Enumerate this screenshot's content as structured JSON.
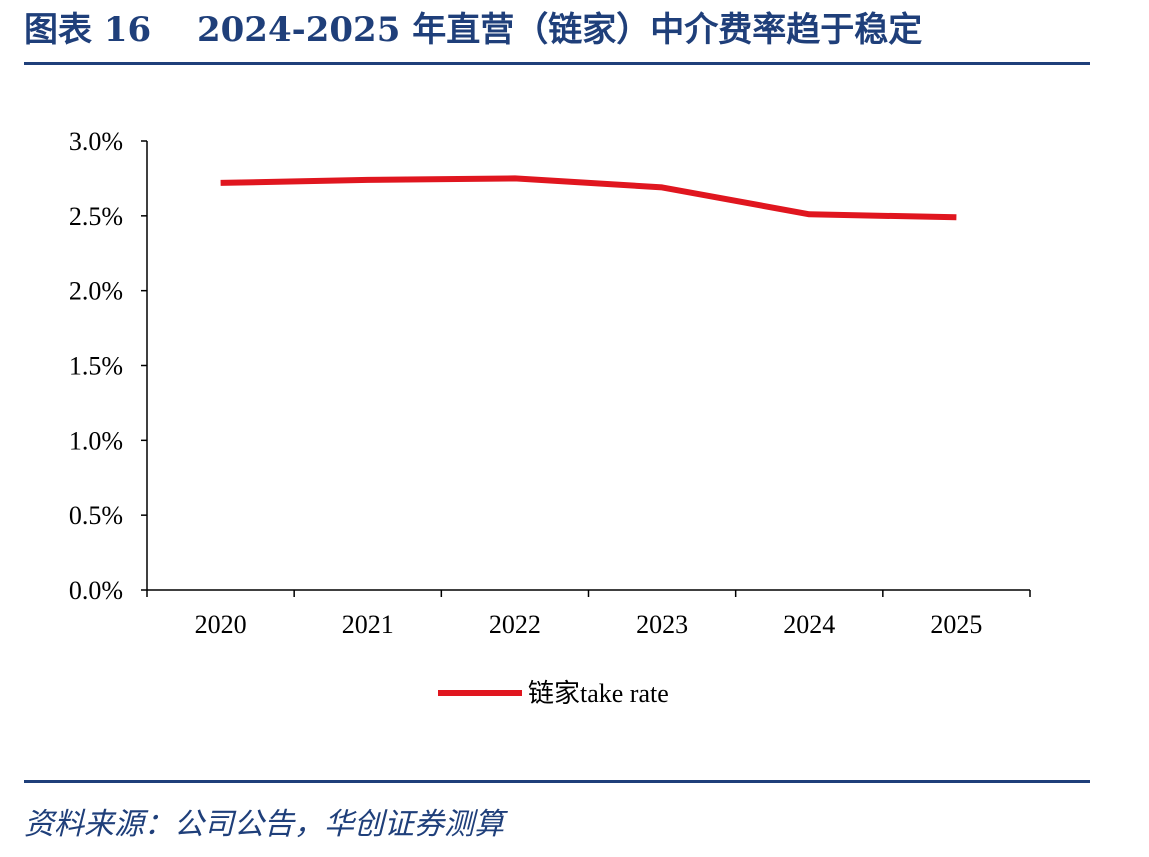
{
  "title": "图表 16　 2024-2025 年直营（链家）中介费率趋于稳定",
  "source": "资料来源：公司公告，华创证券测算",
  "colors": {
    "accent": "#1f3f7a",
    "series": "#e0161f",
    "axis": "#000000"
  },
  "chart_data": {
    "type": "line",
    "x": [
      "2020",
      "2021",
      "2022",
      "2023",
      "2024",
      "2025"
    ],
    "series": [
      {
        "name": "链家take rate",
        "values": [
          2.72,
          2.74,
          2.75,
          2.69,
          2.51,
          2.49
        ]
      }
    ],
    "y_ticks": [
      "0.0%",
      "0.5%",
      "1.0%",
      "1.5%",
      "2.0%",
      "2.5%",
      "3.0%"
    ],
    "ylim": [
      0,
      3.0
    ],
    "grid": false,
    "legend": "bottom-center"
  }
}
